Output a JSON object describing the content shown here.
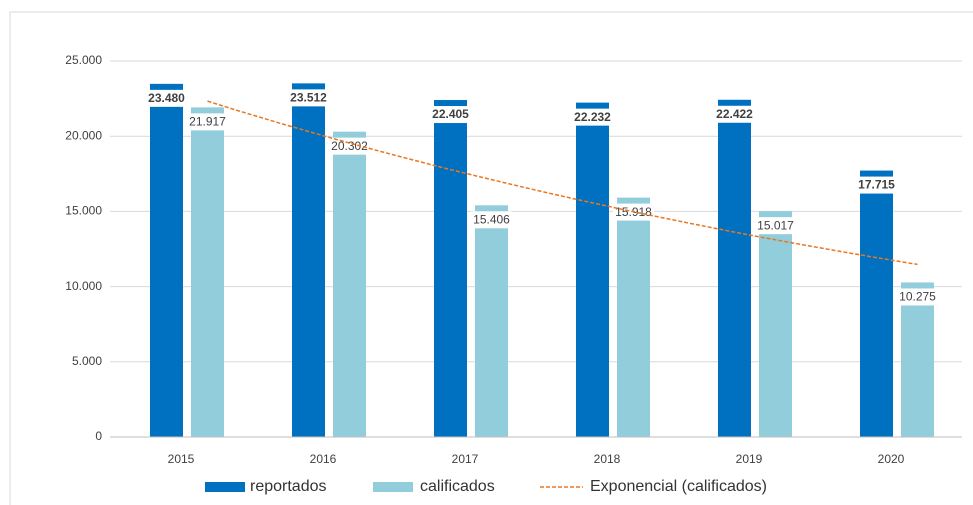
{
  "chart_data": {
    "type": "bar",
    "categories": [
      "2015",
      "2016",
      "2017",
      "2018",
      "2019",
      "2020"
    ],
    "series": [
      {
        "name": "reportados",
        "color": "#0070c0",
        "values": [
          23480,
          23512,
          22405,
          22232,
          22422,
          17715
        ],
        "value_labels": [
          "23.480",
          "23.512",
          "22.405",
          "22.232",
          "22.422",
          "17.715"
        ]
      },
      {
        "name": "calificados",
        "color": "#92cddc",
        "values": [
          21917,
          20302,
          15406,
          15918,
          15017,
          10275
        ],
        "value_labels": [
          "21.917",
          "20.302",
          "15.406",
          "15.918",
          "15.017",
          "10.275"
        ]
      }
    ],
    "trendline": {
      "name": "Exponencial (calificados)",
      "type": "exponential",
      "series": 1,
      "color": "#e87722"
    },
    "ylim": [
      0,
      25000
    ],
    "yticks": [
      0,
      {
        "value": 5000,
        "label": "5.000"
      },
      {
        "value": 10000,
        "label": "10.000"
      },
      {
        "value": 15000,
        "label": "15.000"
      },
      {
        "value": 20000,
        "label": "20.000"
      },
      {
        "value": 25000,
        "label": "25.000"
      }
    ],
    "grid": true,
    "legend": "bottom"
  }
}
